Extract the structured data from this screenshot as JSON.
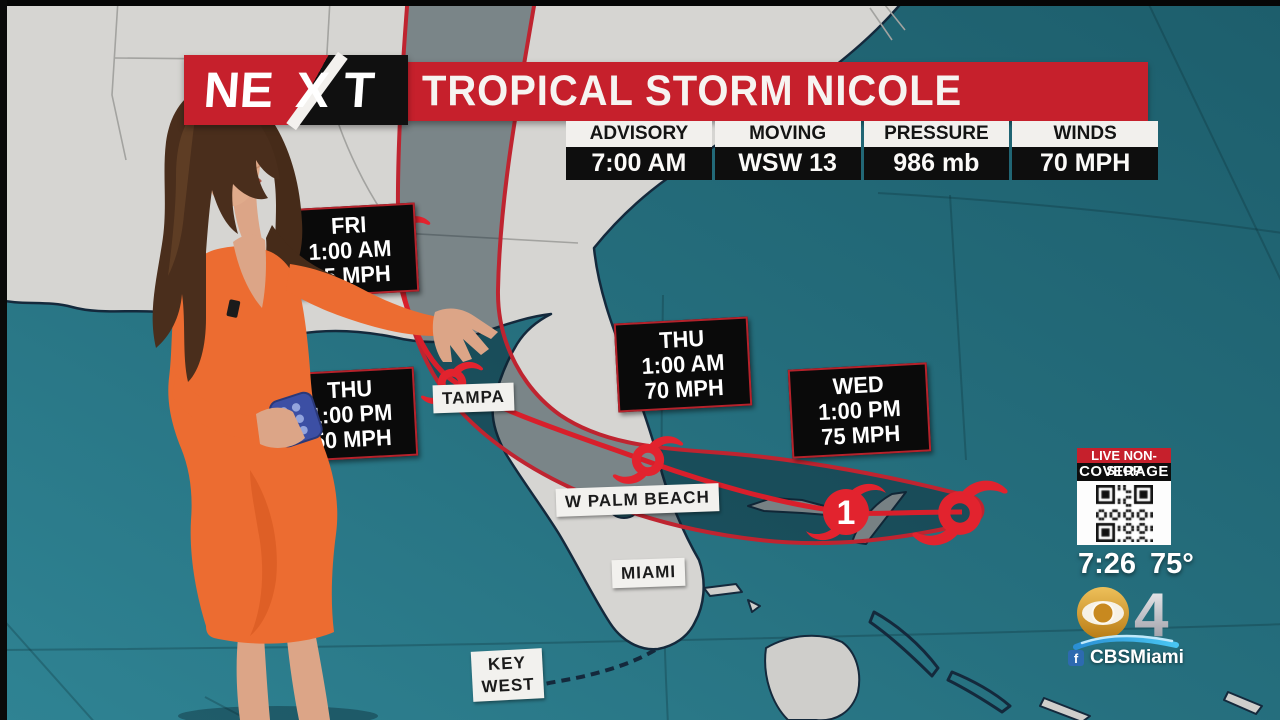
{
  "header": {
    "logo": {
      "ne": "NE",
      "x": "X",
      "t": "T"
    },
    "title": "TROPICAL STORM NICOLE",
    "stats": [
      {
        "label": "ADVISORY",
        "value": "7:00 AM"
      },
      {
        "label": "MOVING",
        "value": "WSW 13"
      },
      {
        "label": "PRESSURE",
        "value": "986 mb"
      },
      {
        "label": "WINDS",
        "value": "70 MPH"
      }
    ]
  },
  "map": {
    "cities": [
      {
        "label": "TAMPA"
      },
      {
        "label": "W PALM BEACH"
      },
      {
        "label": "MIAMI"
      },
      {
        "label": "KEY WEST",
        "line1": "KEY",
        "line2": "WEST"
      }
    ],
    "forecast": [
      {
        "day": "WED",
        "time": "1:00 PM",
        "wind": "75 MPH"
      },
      {
        "day": "THU",
        "time": "1:00 AM",
        "wind": "70 MPH"
      },
      {
        "day": "THU",
        "time": "1:00 PM",
        "wind": "50 MPH"
      },
      {
        "day": "FRI",
        "time": "1:00 AM",
        "wind": "35 MPH"
      }
    ],
    "category_marker": "1"
  },
  "panel": {
    "live_line1": "LIVE NON-STOP",
    "live_line2": "COVERAGE",
    "clock": "7:26",
    "temp": "75°",
    "channel": "4",
    "facebook_f": "f",
    "social": "CBSMiami"
  },
  "colors": {
    "brand_red": "#c6202c",
    "label_black": "#0a0a0a",
    "ocean_teal": "#26707f",
    "land_gray": "#d6d5d2",
    "cone_border_red": "#bf2430",
    "storm_icon_red": "#e2232e",
    "cbs_gold": "#d89b2e",
    "wave_blue": "#35b3e6",
    "facebook_blue": "#2d6ab0"
  }
}
